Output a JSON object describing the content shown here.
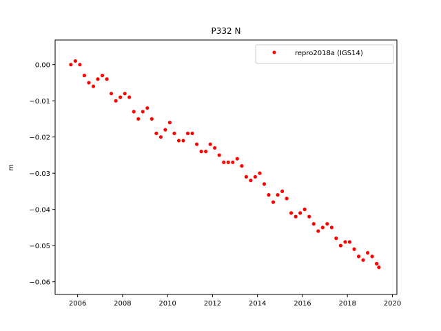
{
  "chart_data": {
    "type": "scatter",
    "title": "P332 N",
    "xlabel": "",
    "ylabel": "m",
    "xlim": [
      2005.0,
      2020.2
    ],
    "ylim": [
      -0.0635,
      0.0068
    ],
    "xticks": [
      2006,
      2008,
      2010,
      2012,
      2014,
      2016,
      2018,
      2020
    ],
    "xtick_labels": [
      "2006",
      "2008",
      "2010",
      "2012",
      "2014",
      "2016",
      "2018",
      "2020"
    ],
    "yticks": [
      0.0,
      -0.01,
      -0.02,
      -0.03,
      -0.04,
      -0.05,
      -0.06
    ],
    "ytick_labels": [
      "0.00",
      "−0.01",
      "−0.02",
      "−0.03",
      "−0.04",
      "−0.05",
      "−0.06"
    ],
    "grid": false,
    "legend_position": "upper right",
    "series": [
      {
        "name": "repro2018a (IGS14)",
        "color": "#ff0000",
        "marker": "circle",
        "x": [
          2005.7,
          2005.9,
          2006.1,
          2006.3,
          2006.5,
          2006.7,
          2006.9,
          2007.1,
          2007.3,
          2007.5,
          2007.7,
          2007.9,
          2008.1,
          2008.3,
          2008.5,
          2008.7,
          2008.9,
          2009.1,
          2009.3,
          2009.5,
          2009.7,
          2009.9,
          2010.1,
          2010.3,
          2010.5,
          2010.7,
          2010.9,
          2011.1,
          2011.3,
          2011.5,
          2011.7,
          2011.9,
          2012.1,
          2012.3,
          2012.5,
          2012.7,
          2012.9,
          2013.1,
          2013.3,
          2013.5,
          2013.7,
          2013.9,
          2014.1,
          2014.3,
          2014.5,
          2014.7,
          2014.9,
          2015.1,
          2015.3,
          2015.5,
          2015.7,
          2015.9,
          2016.1,
          2016.3,
          2016.5,
          2016.7,
          2016.9,
          2017.1,
          2017.3,
          2017.5,
          2017.7,
          2017.9,
          2018.1,
          2018.3,
          2018.5,
          2018.7,
          2018.9,
          2019.1,
          2019.3,
          2019.4
        ],
        "y": [
          0.0,
          0.001,
          0.0,
          -0.003,
          -0.005,
          -0.006,
          -0.004,
          -0.003,
          -0.004,
          -0.008,
          -0.01,
          -0.009,
          -0.008,
          -0.009,
          -0.013,
          -0.015,
          -0.013,
          -0.012,
          -0.015,
          -0.019,
          -0.02,
          -0.018,
          -0.016,
          -0.019,
          -0.021,
          -0.021,
          -0.019,
          -0.019,
          -0.022,
          -0.024,
          -0.024,
          -0.022,
          -0.023,
          -0.025,
          -0.027,
          -0.027,
          -0.027,
          -0.026,
          -0.028,
          -0.031,
          -0.032,
          -0.031,
          -0.03,
          -0.033,
          -0.036,
          -0.038,
          -0.036,
          -0.035,
          -0.037,
          -0.041,
          -0.042,
          -0.041,
          -0.04,
          -0.042,
          -0.044,
          -0.046,
          -0.045,
          -0.044,
          -0.045,
          -0.048,
          -0.05,
          -0.049,
          -0.049,
          -0.051,
          -0.053,
          -0.054,
          -0.052,
          -0.053,
          -0.055,
          -0.056
        ]
      }
    ]
  }
}
